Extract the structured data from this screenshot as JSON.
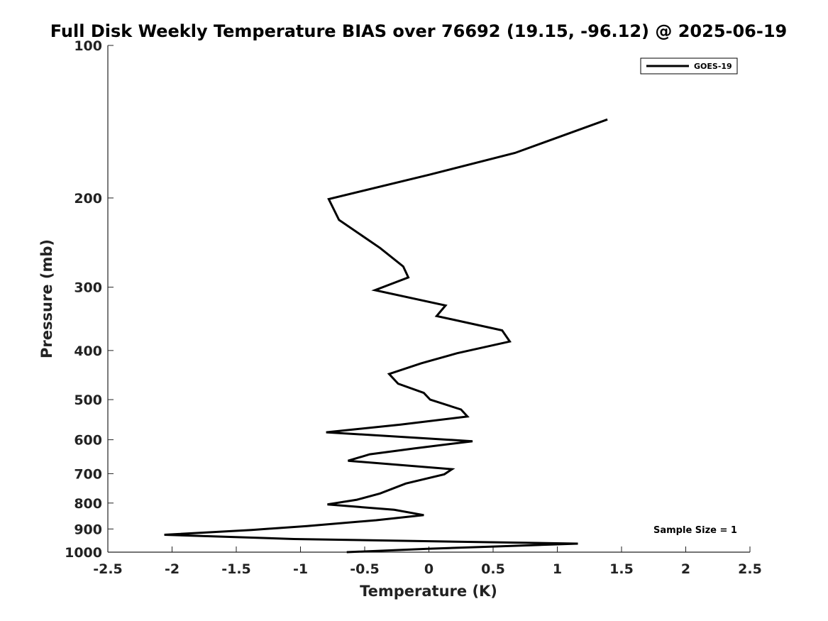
{
  "chart_data": {
    "type": "line",
    "title": "Full Disk Weekly Temperature BIAS over 76692 (19.15, -96.12) @ 2025-06-19",
    "xlabel": "Temperature (K)",
    "ylabel": "Pressure (mb)",
    "xlim": [
      -2.5,
      2.5
    ],
    "ylim": [
      100,
      1000
    ],
    "yscale": "log",
    "y_reversed": true,
    "grid": false,
    "legend_position": "top-right",
    "annotation": "Sample Size = 1",
    "x_ticks": [
      -2.5,
      -2,
      -1.5,
      -1,
      -0.5,
      0,
      0.5,
      1,
      1.5,
      2,
      2.5
    ],
    "x_tick_labels": [
      "-2.5",
      "-2",
      "-1.5",
      "-1",
      "-0.5",
      "0",
      "0.5",
      "1",
      "1.5",
      "2",
      "2.5"
    ],
    "y_ticks": [
      100,
      200,
      300,
      400,
      500,
      600,
      700,
      800,
      900,
      1000
    ],
    "y_tick_labels": [
      "100",
      "200",
      "300",
      "400",
      "500",
      "600",
      "700",
      "800",
      "900",
      "1000"
    ],
    "series": [
      {
        "name": "GOES-19",
        "color": "#000000",
        "points": [
          {
            "t": 1.39,
            "p": 140
          },
          {
            "t": 0.67,
            "p": 163
          },
          {
            "t": 0.0,
            "p": 180
          },
          {
            "t": -0.78,
            "p": 201
          },
          {
            "t": -0.7,
            "p": 221
          },
          {
            "t": -0.38,
            "p": 251
          },
          {
            "t": -0.2,
            "p": 273
          },
          {
            "t": -0.16,
            "p": 287
          },
          {
            "t": -0.42,
            "p": 304
          },
          {
            "t": 0.13,
            "p": 326
          },
          {
            "t": 0.06,
            "p": 342
          },
          {
            "t": 0.57,
            "p": 365
          },
          {
            "t": 0.63,
            "p": 384
          },
          {
            "t": 0.22,
            "p": 405
          },
          {
            "t": -0.06,
            "p": 424
          },
          {
            "t": -0.31,
            "p": 445
          },
          {
            "t": -0.24,
            "p": 465
          },
          {
            "t": -0.04,
            "p": 485
          },
          {
            "t": 0.01,
            "p": 500
          },
          {
            "t": 0.25,
            "p": 523
          },
          {
            "t": 0.3,
            "p": 540
          },
          {
            "t": -0.22,
            "p": 560
          },
          {
            "t": -0.8,
            "p": 580
          },
          {
            "t": 0.34,
            "p": 604
          },
          {
            "t": -0.11,
            "p": 624
          },
          {
            "t": -0.46,
            "p": 641
          },
          {
            "t": -0.63,
            "p": 660
          },
          {
            "t": 0.18,
            "p": 686
          },
          {
            "t": 0.12,
            "p": 702
          },
          {
            "t": -0.18,
            "p": 732
          },
          {
            "t": -0.38,
            "p": 766
          },
          {
            "t": -0.56,
            "p": 788
          },
          {
            "t": -0.79,
            "p": 805
          },
          {
            "t": -0.27,
            "p": 825
          },
          {
            "t": -0.04,
            "p": 845
          },
          {
            "t": -0.41,
            "p": 865
          },
          {
            "t": -0.95,
            "p": 888
          },
          {
            "t": -1.38,
            "p": 904
          },
          {
            "t": -2.06,
            "p": 924
          },
          {
            "t": -1.05,
            "p": 942
          },
          {
            "t": 1.16,
            "p": 962
          },
          {
            "t": 0.5,
            "p": 975
          },
          {
            "t": -0.01,
            "p": 985
          },
          {
            "t": -0.64,
            "p": 1000
          }
        ]
      }
    ]
  }
}
